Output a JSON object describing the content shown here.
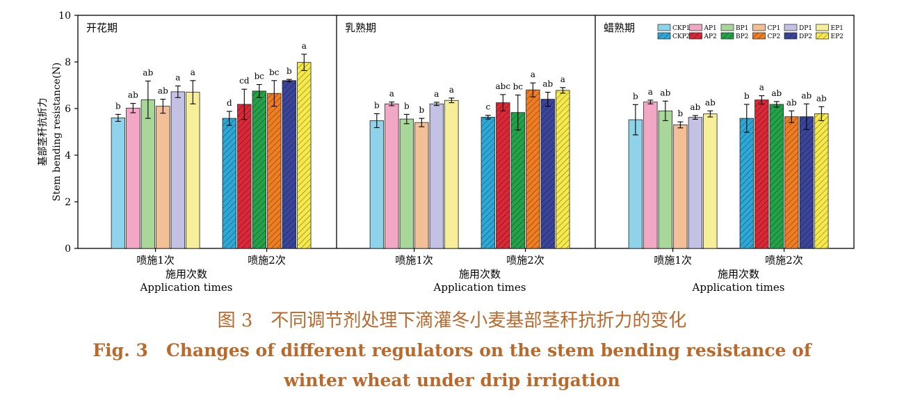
{
  "caption": {
    "cn_label": "图 3",
    "cn_text": "不同调节剂处理下滴灌冬小麦基部茎秆抗折力的变化",
    "en_label": "Fig. 3",
    "en_line1": "Changes of different regulators on the stem bending resistance of",
    "en_line2": "winter wheat under drip irrigation"
  },
  "chart_data": {
    "type": "bar",
    "ylabel_cn": "基部茎秆抗折力",
    "ylabel_en": "Stem bending resistance(N)",
    "ylim": [
      0,
      10
    ],
    "yticks": [
      "0",
      "2",
      "4",
      "6",
      "8",
      "10"
    ],
    "categories": [
      "喷施1次",
      "喷施2次"
    ],
    "xlabel_cn": [
      "施用次数",
      "施用次数",
      "施用次数"
    ],
    "xlabel_en": "Application times",
    "legend": {
      "placement": "top-right of third panel",
      "row1": [
        "CKP1",
        "AP1",
        "BP1",
        "CP1",
        "DP1",
        "EP1"
      ],
      "row2": [
        "CKP2",
        "AP2",
        "BP2",
        "CP2",
        "DP2",
        "EP2"
      ]
    },
    "colors": {
      "spray1": [
        "#8ed3ea",
        "#f2a8c4",
        "#a9d79a",
        "#f3bf96",
        "#c3c1e4",
        "#f7ee9a"
      ],
      "spray2": [
        "#2ea8d6",
        "#d92838",
        "#23a24a",
        "#ef7d22",
        "#3a4499",
        "#f5e94c"
      ]
    },
    "panels": [
      {
        "title": "开花期",
        "spray1": {
          "values": [
            5.6,
            6.02,
            6.38,
            6.1,
            6.72,
            6.7
          ],
          "errors": [
            0.15,
            0.2,
            0.8,
            0.3,
            0.25,
            0.5
          ],
          "letters": [
            "b",
            "ab",
            "ab",
            "ab",
            "a",
            "a"
          ]
        },
        "spray2": {
          "values": [
            5.58,
            6.18,
            6.75,
            6.65,
            7.2,
            7.98
          ],
          "errors": [
            0.3,
            0.65,
            0.28,
            0.55,
            0.05,
            0.35
          ],
          "letters": [
            "d",
            "cd",
            "bc",
            "bc",
            "b",
            "a"
          ]
        }
      },
      {
        "title": "乳熟期",
        "spray1": {
          "values": [
            5.48,
            6.2,
            5.55,
            5.4,
            6.2,
            6.35
          ],
          "errors": [
            0.3,
            0.08,
            0.2,
            0.18,
            0.07,
            0.1
          ],
          "letters": [
            "b",
            "a",
            "b",
            "b",
            "a",
            "a"
          ]
        },
        "spray2": {
          "values": [
            5.63,
            6.25,
            5.83,
            6.8,
            6.4,
            6.78
          ],
          "errors": [
            0.08,
            0.35,
            0.75,
            0.3,
            0.3,
            0.12
          ],
          "letters": [
            "c",
            "abc",
            "bc",
            "a",
            "ab",
            "a"
          ]
        }
      },
      {
        "title": "蜡熟期",
        "spray1": {
          "values": [
            5.52,
            6.28,
            5.9,
            5.3,
            5.62,
            5.77
          ],
          "errors": [
            0.65,
            0.08,
            0.42,
            0.13,
            0.08,
            0.13
          ],
          "letters": [
            "b",
            "a",
            "ab",
            "b",
            "ab",
            "ab"
          ]
        },
        "spray2": {
          "values": [
            5.58,
            6.37,
            6.18,
            5.65,
            5.65,
            5.78
          ],
          "errors": [
            0.6,
            0.18,
            0.12,
            0.25,
            0.55,
            0.3
          ],
          "letters": [
            "b",
            "a",
            "ab",
            "ab",
            "ab",
            "ab"
          ]
        }
      }
    ]
  }
}
